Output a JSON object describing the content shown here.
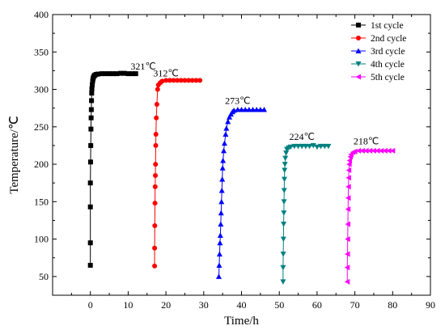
{
  "chart_data": {
    "type": "scatter",
    "title": "",
    "xlabel": "Time/h",
    "ylabel": "Temperature/℃",
    "xlim": [
      -10,
      90
    ],
    "ylim": [
      25,
      400
    ],
    "x_ticks": [
      "0",
      "10",
      "20",
      "30",
      "40",
      "50",
      "60",
      "70",
      "80",
      "90"
    ],
    "y_ticks": [
      "50",
      "100",
      "150",
      "200",
      "250",
      "300",
      "350",
      "400"
    ],
    "grid": false,
    "legend_position": "top-right",
    "series": [
      {
        "name": "1st cycle",
        "color": "#000000",
        "marker": "square",
        "annotation": "321℃",
        "annotation_at": [
          14,
          322
        ],
        "x": [
          0,
          0,
          0,
          0,
          0.05,
          0.1,
          0.15,
          0.2,
          0.25,
          0.3,
          0.35,
          0.4,
          0.5,
          0.6,
          0.7,
          0.8,
          1.0,
          1.2,
          1.5,
          2,
          3,
          4,
          5,
          6,
          7,
          8,
          9,
          10,
          11,
          12
        ],
        "y": [
          65,
          95,
          143,
          175,
          203,
          225,
          247,
          262,
          273,
          285,
          295,
          301,
          306,
          311,
          314,
          316,
          318,
          319,
          320,
          320.5,
          321,
          321,
          321,
          321,
          321,
          321.5,
          321.5,
          321,
          321,
          321
        ]
      },
      {
        "name": "2nd cycle",
        "color": "#ff0000",
        "marker": "circle",
        "annotation": "312℃",
        "annotation_at": [
          20,
          313
        ],
        "x": [
          17,
          17,
          17.05,
          17.1,
          17.15,
          17.2,
          17.25,
          17.3,
          17.35,
          17.45,
          17.6,
          17.8,
          18,
          18.5,
          19,
          20,
          21,
          22,
          23,
          24,
          25,
          26,
          27,
          28,
          29
        ],
        "y": [
          64,
          88,
          118,
          148,
          170,
          185,
          200,
          225,
          240,
          262,
          280,
          300,
          306,
          309,
          311,
          312,
          312,
          312,
          312,
          312,
          312,
          312,
          312,
          312,
          312
        ],
        "annotation_x_dummy": null
      },
      {
        "name": "3rd cycle",
        "color": "#0000ff",
        "marker": "triangle-up",
        "annotation": "273℃",
        "annotation_at": [
          39,
          276
        ],
        "x": [
          34,
          34.1,
          34.2,
          34.3,
          34.4,
          34.5,
          34.6,
          34.7,
          34.8,
          34.9,
          35,
          35.1,
          35.3,
          35.5,
          35.8,
          36,
          36.4,
          36.8,
          37.2,
          37.6,
          38,
          39,
          40,
          41,
          42,
          43,
          44,
          45,
          46
        ],
        "y": [
          50,
          65,
          80,
          95,
          105,
          120,
          135,
          150,
          165,
          180,
          195,
          205,
          218,
          228,
          240,
          248,
          257,
          263,
          267,
          270,
          272,
          273,
          273,
          273,
          273,
          273,
          273,
          273,
          273
        ]
      },
      {
        "name": "4th cycle",
        "color": "#008080",
        "marker": "triangle-down",
        "annotation": "224℃",
        "annotation_at": [
          56,
          228
        ],
        "x": [
          51,
          51,
          51.05,
          51.1,
          51.15,
          51.2,
          51.25,
          51.3,
          51.35,
          51.4,
          51.5,
          51.6,
          51.8,
          52,
          52.5,
          53,
          54,
          55,
          56,
          57,
          58,
          59,
          60,
          61,
          62,
          63
        ],
        "y": [
          43,
          62,
          80,
          100,
          120,
          135,
          150,
          165,
          180,
          192,
          200,
          208,
          215,
          220,
          222,
          223,
          224,
          224,
          224,
          224,
          224,
          225,
          223,
          224,
          224,
          224
        ]
      },
      {
        "name": "5th cycle",
        "color": "#ff00ff",
        "marker": "triangle-left",
        "annotation": "218℃",
        "annotation_at": [
          73,
          222
        ],
        "x": [
          68,
          68,
          68.05,
          68.1,
          68.15,
          68.2,
          68.25,
          68.3,
          68.35,
          68.4,
          68.5,
          68.6,
          68.8,
          69,
          69.5,
          70,
          71,
          72,
          73,
          74,
          75,
          76,
          77,
          78,
          79,
          80
        ],
        "y": [
          43,
          62,
          80,
          100,
          120,
          140,
          155,
          170,
          182,
          192,
          200,
          205,
          210,
          213,
          216,
          217,
          218,
          218,
          218,
          218,
          218,
          218,
          218,
          218,
          218,
          218
        ]
      }
    ]
  }
}
